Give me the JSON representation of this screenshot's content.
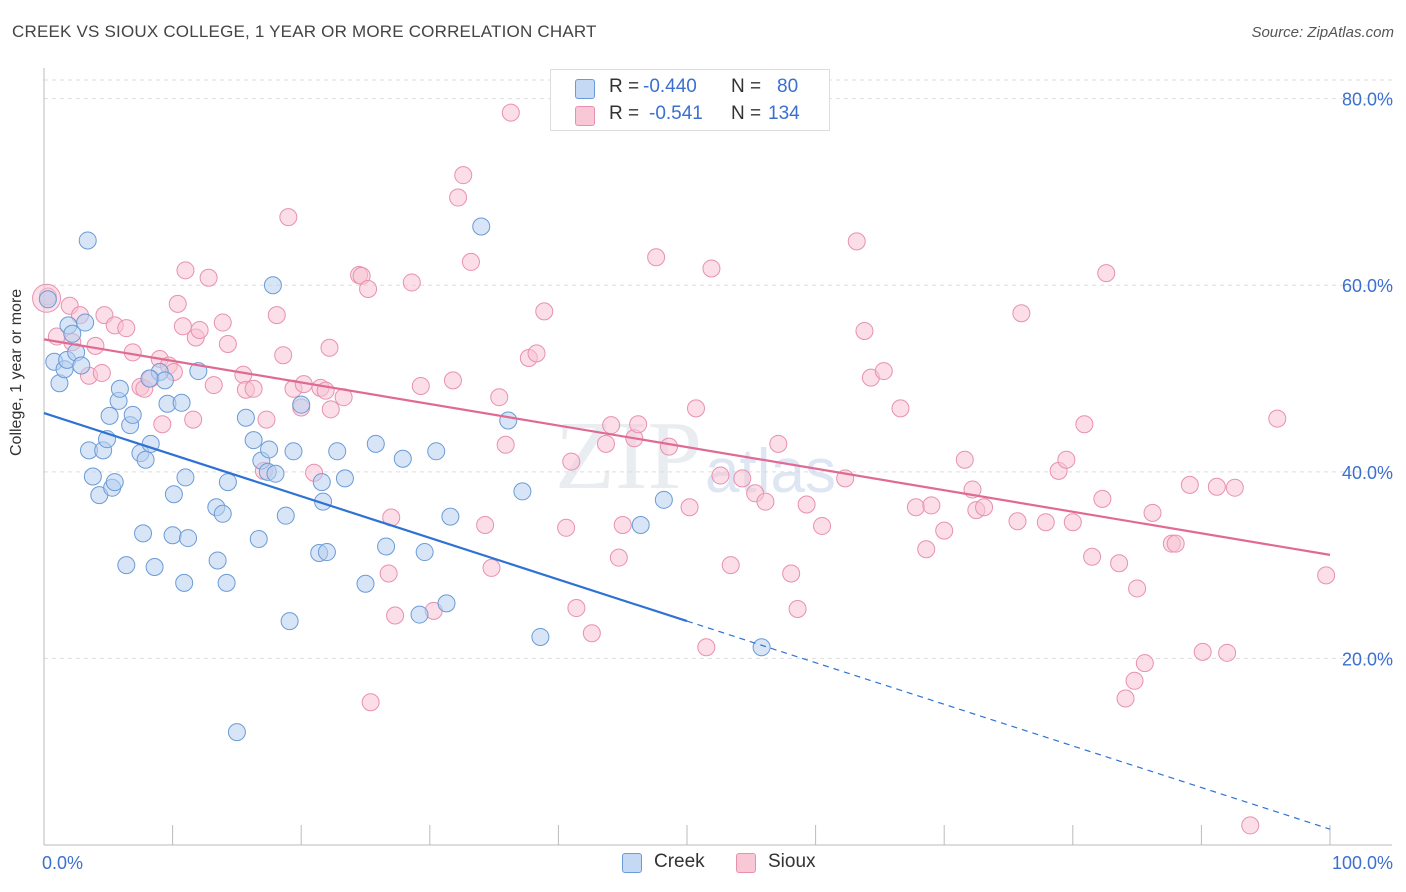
{
  "title": "CREEK VS SIOUX COLLEGE, 1 YEAR OR MORE CORRELATION CHART",
  "source": "Source: ZipAtlas.com",
  "watermark": "ZIPatlas",
  "legend": {
    "rows": [
      {
        "r_label": "R =",
        "r_value": "-0.440",
        "n_label": "N =",
        "n_value": "80"
      },
      {
        "r_label": "R =",
        "r_value": "-0.541",
        "n_label": "N =",
        "n_value": "134"
      }
    ]
  },
  "bottom_legend": [
    {
      "name": "Creek"
    },
    {
      "name": "Sioux"
    }
  ],
  "colors": {
    "creek_fill": "#b7cff1",
    "creek_stroke": "#6b9bd7",
    "creek_line": "#2f72d4",
    "sioux_fill": "#f7c2d3",
    "sioux_stroke": "#e891ae",
    "sioux_line": "#e06a93",
    "tick_label": "#3b6fd0",
    "grid": "#dddddd"
  },
  "chart_data": {
    "type": "scatter",
    "title": "CREEK VS SIOUX COLLEGE, 1 YEAR OR MORE CORRELATION CHART",
    "xlabel": "",
    "ylabel": "College, 1 year or more",
    "xlim": [
      0,
      100
    ],
    "ylim": [
      0,
      82
    ],
    "x_tick_labels": [
      {
        "value": 0,
        "label": "0.0%"
      },
      {
        "value": 100,
        "label": "100.0%"
      }
    ],
    "x_minor_ticks": [
      10,
      20,
      30,
      40,
      50,
      60,
      70,
      80,
      90,
      100
    ],
    "y_ticks": [
      {
        "value": 20,
        "label": "20.0%"
      },
      {
        "value": 40,
        "label": "40.0%"
      },
      {
        "value": 60,
        "label": "60.0%"
      },
      {
        "value": 80,
        "label": "80.0%"
      }
    ],
    "series": [
      {
        "name": "Creek",
        "R": -0.44,
        "N": 80,
        "trend": {
          "x0": 0,
          "y0": 46.3,
          "x1": 50,
          "y1": 24.0,
          "dashed_to_x": 100,
          "dashed_to_y": 1.7
        },
        "points": [
          [
            0.3,
            58.5
          ],
          [
            0.8,
            51.8
          ],
          [
            1.2,
            49.5
          ],
          [
            1.6,
            51.0
          ],
          [
            1.9,
            55.7
          ],
          [
            2.2,
            54.8
          ],
          [
            1.8,
            52.0
          ],
          [
            2.5,
            52.8
          ],
          [
            2.9,
            51.4
          ],
          [
            3.2,
            56.0
          ],
          [
            3.5,
            42.3
          ],
          [
            3.8,
            39.5
          ],
          [
            4.3,
            37.5
          ],
          [
            4.6,
            42.3
          ],
          [
            4.9,
            43.5
          ],
          [
            5.1,
            46.0
          ],
          [
            5.3,
            38.3
          ],
          [
            5.5,
            38.9
          ],
          [
            5.8,
            47.6
          ],
          [
            5.9,
            48.9
          ],
          [
            6.7,
            45.0
          ],
          [
            6.9,
            46.1
          ],
          [
            6.4,
            30.0
          ],
          [
            7.5,
            42.0
          ],
          [
            7.7,
            33.4
          ],
          [
            7.9,
            41.3
          ],
          [
            8.3,
            43.0
          ],
          [
            8.6,
            29.8
          ],
          [
            9.0,
            50.7
          ],
          [
            9.4,
            49.8
          ],
          [
            9.6,
            47.3
          ],
          [
            10.0,
            33.2
          ],
          [
            10.1,
            37.6
          ],
          [
            10.7,
            47.4
          ],
          [
            10.9,
            28.1
          ],
          [
            11.0,
            39.4
          ],
          [
            11.2,
            32.9
          ],
          [
            12.0,
            50.8
          ],
          [
            13.4,
            36.2
          ],
          [
            13.5,
            30.5
          ],
          [
            13.9,
            35.5
          ],
          [
            14.2,
            28.1
          ],
          [
            14.3,
            38.9
          ],
          [
            15.0,
            12.1
          ],
          [
            15.7,
            45.8
          ],
          [
            16.3,
            43.4
          ],
          [
            16.7,
            32.8
          ],
          [
            16.9,
            41.2
          ],
          [
            17.5,
            42.4
          ],
          [
            17.4,
            40.0
          ],
          [
            17.8,
            60.0
          ],
          [
            18.0,
            39.8
          ],
          [
            18.8,
            35.3
          ],
          [
            19.1,
            24.0
          ],
          [
            19.4,
            42.2
          ],
          [
            20.0,
            47.2
          ],
          [
            21.4,
            31.3
          ],
          [
            21.6,
            38.9
          ],
          [
            21.7,
            36.8
          ],
          [
            22.0,
            31.4
          ],
          [
            22.8,
            42.2
          ],
          [
            23.4,
            39.3
          ],
          [
            25.0,
            28.0
          ],
          [
            25.8,
            43.0
          ],
          [
            26.6,
            32.0
          ],
          [
            27.9,
            41.4
          ],
          [
            29.2,
            24.7
          ],
          [
            29.6,
            31.4
          ],
          [
            30.5,
            42.2
          ],
          [
            31.3,
            25.9
          ],
          [
            31.6,
            35.2
          ],
          [
            34.0,
            66.3
          ],
          [
            36.1,
            45.5
          ],
          [
            37.2,
            37.9
          ],
          [
            38.6,
            22.3
          ],
          [
            46.4,
            34.3
          ],
          [
            48.2,
            37.0
          ],
          [
            55.8,
            21.2
          ],
          [
            3.4,
            64.8
          ],
          [
            8.2,
            50.0
          ]
        ]
      },
      {
        "name": "Sioux",
        "R": -0.541,
        "N": 134,
        "trend": {
          "x0": 0,
          "y0": 54.2,
          "x1": 100,
          "y1": 31.1
        },
        "points": [
          [
            0.3,
            58.8
          ],
          [
            1.0,
            54.5
          ],
          [
            2.0,
            57.8
          ],
          [
            2.2,
            53.9
          ],
          [
            2.8,
            56.8
          ],
          [
            3.5,
            50.3
          ],
          [
            4.0,
            53.5
          ],
          [
            4.5,
            50.6
          ],
          [
            4.7,
            56.8
          ],
          [
            5.5,
            55.7
          ],
          [
            6.4,
            55.4
          ],
          [
            6.9,
            52.8
          ],
          [
            7.5,
            49.1
          ],
          [
            7.8,
            48.9
          ],
          [
            8.3,
            50.0
          ],
          [
            9.0,
            52.1
          ],
          [
            9.2,
            45.1
          ],
          [
            9.7,
            51.4
          ],
          [
            10.1,
            50.7
          ],
          [
            10.4,
            58.0
          ],
          [
            10.8,
            55.6
          ],
          [
            11.0,
            61.6
          ],
          [
            11.6,
            45.6
          ],
          [
            11.8,
            54.4
          ],
          [
            12.1,
            55.2
          ],
          [
            12.8,
            60.8
          ],
          [
            13.2,
            49.3
          ],
          [
            13.9,
            56.0
          ],
          [
            14.3,
            53.7
          ],
          [
            15.5,
            50.4
          ],
          [
            15.7,
            48.8
          ],
          [
            16.3,
            48.9
          ],
          [
            17.1,
            40.1
          ],
          [
            17.3,
            45.6
          ],
          [
            18.1,
            56.8
          ],
          [
            18.6,
            52.5
          ],
          [
            19.0,
            67.3
          ],
          [
            19.4,
            48.9
          ],
          [
            20.0,
            46.9
          ],
          [
            20.2,
            49.4
          ],
          [
            21.0,
            39.9
          ],
          [
            21.5,
            49.0
          ],
          [
            21.9,
            48.7
          ],
          [
            22.2,
            53.3
          ],
          [
            22.3,
            46.7
          ],
          [
            23.3,
            48.0
          ],
          [
            24.5,
            61.1
          ],
          [
            24.7,
            61.0
          ],
          [
            25.2,
            59.6
          ],
          [
            25.4,
            15.3
          ],
          [
            26.8,
            29.1
          ],
          [
            27.0,
            35.1
          ],
          [
            27.3,
            24.6
          ],
          [
            28.6,
            60.3
          ],
          [
            29.3,
            49.2
          ],
          [
            30.3,
            25.1
          ],
          [
            31.8,
            49.8
          ],
          [
            32.2,
            69.4
          ],
          [
            32.6,
            71.8
          ],
          [
            33.2,
            62.5
          ],
          [
            34.3,
            34.3
          ],
          [
            34.8,
            29.7
          ],
          [
            35.4,
            48.0
          ],
          [
            35.9,
            42.9
          ],
          [
            36.3,
            78.5
          ],
          [
            37.7,
            52.2
          ],
          [
            38.3,
            52.7
          ],
          [
            38.9,
            57.2
          ],
          [
            40.6,
            34.0
          ],
          [
            41.0,
            41.1
          ],
          [
            41.4,
            25.4
          ],
          [
            42.6,
            22.7
          ],
          [
            43.7,
            43.0
          ],
          [
            44.1,
            45.0
          ],
          [
            44.7,
            30.8
          ],
          [
            45.0,
            34.3
          ],
          [
            45.9,
            43.6
          ],
          [
            46.2,
            45.1
          ],
          [
            47.6,
            63.0
          ],
          [
            48.6,
            42.7
          ],
          [
            50.2,
            36.2
          ],
          [
            50.7,
            46.8
          ],
          [
            51.5,
            21.2
          ],
          [
            51.9,
            61.8
          ],
          [
            52.6,
            39.6
          ],
          [
            53.4,
            30.0
          ],
          [
            54.3,
            39.3
          ],
          [
            55.3,
            37.7
          ],
          [
            56.1,
            36.8
          ],
          [
            57.1,
            43.0
          ],
          [
            58.1,
            29.1
          ],
          [
            58.6,
            25.3
          ],
          [
            59.3,
            36.5
          ],
          [
            60.5,
            34.2
          ],
          [
            62.3,
            39.3
          ],
          [
            63.2,
            64.7
          ],
          [
            63.8,
            55.1
          ],
          [
            64.3,
            50.1
          ],
          [
            65.3,
            50.8
          ],
          [
            66.6,
            46.8
          ],
          [
            67.8,
            36.2
          ],
          [
            68.6,
            31.7
          ],
          [
            69.0,
            36.4
          ],
          [
            70.0,
            33.7
          ],
          [
            71.6,
            41.3
          ],
          [
            72.2,
            38.1
          ],
          [
            72.5,
            35.9
          ],
          [
            73.1,
            36.2
          ],
          [
            75.7,
            34.7
          ],
          [
            76.0,
            57.0
          ],
          [
            77.9,
            34.6
          ],
          [
            78.9,
            40.1
          ],
          [
            79.5,
            41.3
          ],
          [
            80.0,
            34.6
          ],
          [
            80.9,
            45.1
          ],
          [
            81.5,
            30.9
          ],
          [
            82.3,
            37.1
          ],
          [
            82.6,
            61.3
          ],
          [
            83.6,
            30.2
          ],
          [
            84.1,
            15.7
          ],
          [
            84.8,
            17.6
          ],
          [
            85.0,
            27.5
          ],
          [
            85.6,
            19.5
          ],
          [
            86.2,
            35.6
          ],
          [
            87.7,
            32.3
          ],
          [
            88.0,
            32.3
          ],
          [
            89.1,
            38.6
          ],
          [
            90.1,
            20.7
          ],
          [
            91.2,
            38.4
          ],
          [
            92.0,
            20.6
          ],
          [
            92.6,
            38.3
          ],
          [
            93.8,
            2.1
          ],
          [
            95.9,
            45.7
          ],
          [
            99.7,
            28.9
          ]
        ]
      }
    ]
  }
}
